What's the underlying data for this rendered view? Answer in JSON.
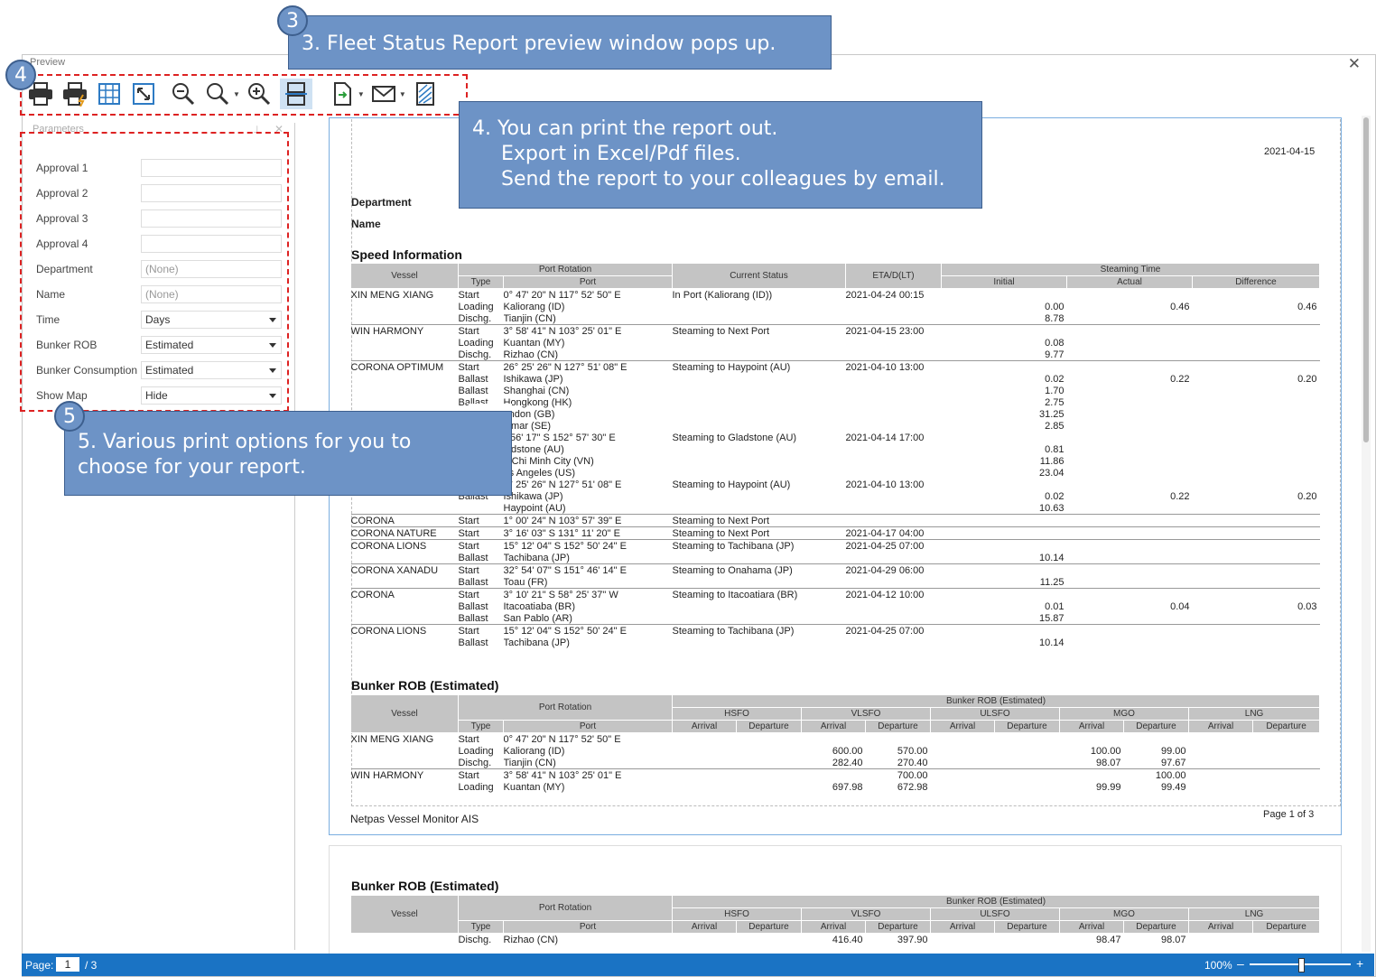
{
  "window": {
    "title": "Preview",
    "close": "✕"
  },
  "toolbar": {
    "icons": [
      "print-icon",
      "quick-print-icon",
      "page-setup-icon",
      "fit-page-icon",
      "zoom-out-icon",
      "zoom-icon",
      "zoom-in-icon",
      "multi-page-icon",
      "export-icon",
      "email-icon",
      "watermark-icon"
    ]
  },
  "params": {
    "header": "Parameters",
    "rows": [
      {
        "label": "Approval 1",
        "value": ""
      },
      {
        "label": "Approval 2",
        "value": ""
      },
      {
        "label": "Approval 3",
        "value": ""
      },
      {
        "label": "Approval 4",
        "value": ""
      },
      {
        "label": "Department",
        "value": "(None)"
      },
      {
        "label": "Name",
        "value": "(None)"
      },
      {
        "label": "Time",
        "value": "Days"
      },
      {
        "label": "Bunker ROB",
        "value": "Estimated"
      },
      {
        "label": "Bunker Consumption",
        "value": "Estimated"
      },
      {
        "label": "Show Map",
        "value": "Hide"
      }
    ]
  },
  "report": {
    "date": "2021-04-15",
    "department_label": "Department",
    "name_label": "Name",
    "speed_title": "Speed Information",
    "speed_headers": {
      "vessel": "Vessel",
      "port_rotation": "Port Rotation",
      "type": "Type",
      "port": "Port",
      "current_status": "Current Status",
      "eta": "ETA/D(LT)",
      "steaming_time": "Steaming Time",
      "initial": "Initial",
      "actual": "Actual",
      "difference": "Difference"
    },
    "speed_rows": [
      [
        "XIN MENG XIANG",
        "Start",
        "0° 47' 20\" N 117° 52' 50\" E",
        "In Port (Kaliorang (ID))",
        "2021-04-24 00:15",
        "",
        "",
        ""
      ],
      [
        "",
        "Loading",
        "Kaliorang (ID)",
        "",
        "",
        "0.00",
        "0.46",
        "0.46"
      ],
      [
        "",
        "Dischg.",
        "Tianjin (CN)",
        "",
        "",
        "8.78",
        "",
        ""
      ],
      [
        "WIN HARMONY",
        "Start",
        "3° 58' 41\" N 103° 25' 01\" E",
        "Steaming to Next Port",
        "2021-04-15 23:00",
        "",
        "",
        ""
      ],
      [
        "",
        "Loading",
        "Kuantan (MY)",
        "",
        "",
        "0.08",
        "",
        ""
      ],
      [
        "",
        "Dischg.",
        "Rizhao (CN)",
        "",
        "",
        "9.77",
        "",
        ""
      ],
      [
        "CORONA OPTIMUM",
        "Start",
        "26° 25' 26\" N 127° 51' 08\" E",
        "Steaming to Haypoint (AU)",
        "2021-04-10 13:00",
        "",
        "",
        ""
      ],
      [
        "",
        "Ballast",
        "Ishikawa (JP)",
        "",
        "",
        "0.02",
        "0.22",
        "0.20"
      ],
      [
        "",
        "Ballast",
        "Shanghai (CN)",
        "",
        "",
        "1.70",
        "",
        ""
      ],
      [
        "",
        "Ballast",
        "Hongkong (HK)",
        "",
        "",
        "2.75",
        "",
        ""
      ],
      [
        "",
        "",
        "ondon (GB)",
        "",
        "",
        "31.25",
        "",
        ""
      ],
      [
        "",
        "",
        "almar (SE)",
        "",
        "",
        "2.85",
        "",
        ""
      ],
      [
        "",
        "",
        "° 56' 17\" S 152° 57' 30\" E",
        "Steaming to Gladstone (AU)",
        "2021-04-14 17:00",
        "",
        "",
        ""
      ],
      [
        "",
        "",
        "ladstone (AU)",
        "",
        "",
        "0.81",
        "",
        ""
      ],
      [
        "",
        "",
        "o Chi Minh City (VN)",
        "",
        "",
        "11.86",
        "",
        ""
      ],
      [
        "",
        "",
        "os Angeles (US)",
        "",
        "",
        "23.04",
        "",
        ""
      ],
      [
        "",
        "",
        "6° 25' 26\" N 127° 51' 08\" E",
        "Steaming to Haypoint (AU)",
        "2021-04-10 13:00",
        "",
        "",
        ""
      ],
      [
        "",
        "Ballast",
        "Ishikawa (JP)",
        "",
        "",
        "0.02",
        "0.22",
        "0.20"
      ],
      [
        "",
        "",
        "Haypoint (AU)",
        "",
        "",
        "10.63",
        "",
        ""
      ],
      [
        "CORONA",
        "Start",
        "1° 00' 24\" N 103° 57' 39\" E",
        "Steaming to Next Port",
        "",
        "",
        "",
        ""
      ],
      [
        "CORONA NATURE",
        "Start",
        "3° 16' 03\" S 131° 11' 20\" E",
        "Steaming to Next Port",
        "2021-04-17 04:00",
        "",
        "",
        ""
      ],
      [
        "CORONA LIONS",
        "Start",
        "15° 12' 04\" S 152° 50' 24\" E",
        "Steaming to Tachibana (JP)",
        "2021-04-25 07:00",
        "",
        "",
        ""
      ],
      [
        "",
        "Ballast",
        "Tachibana (JP)",
        "",
        "",
        "10.14",
        "",
        ""
      ],
      [
        "CORONA XANADU",
        "Start",
        "32° 54' 07\" S 151° 46' 14\" E",
        "Steaming to Onahama (JP)",
        "2021-04-29 06:00",
        "",
        "",
        ""
      ],
      [
        "",
        "Ballast",
        "Toau (FR)",
        "",
        "",
        "11.25",
        "",
        ""
      ],
      [
        "CORONA",
        "Start",
        "3° 10' 21\" S 58° 25' 37\" W",
        "Steaming to Itacoatiara (BR)",
        "2021-04-12 10:00",
        "",
        "",
        ""
      ],
      [
        "",
        "Ballast",
        "Itacoatiaba (BR)",
        "",
        "",
        "0.01",
        "0.04",
        "0.03"
      ],
      [
        "",
        "Ballast",
        "San Pablo (AR)",
        "",
        "",
        "15.87",
        "",
        ""
      ],
      [
        "CORONA LIONS",
        "Start",
        "15° 12' 04\" S 152° 50' 24\" E",
        "Steaming to Tachibana (JP)",
        "2021-04-25 07:00",
        "",
        "",
        ""
      ],
      [
        "",
        "Ballast",
        "Tachibana (JP)",
        "",
        "",
        "10.14",
        "",
        ""
      ]
    ],
    "bunker_title": "Bunker ROB (Estimated)",
    "bunker_headers": {
      "vessel": "Vessel",
      "port_rotation": "Port Rotation",
      "group": "Bunker ROB (Estimated)",
      "type": "Type",
      "port": "Port",
      "fuels": [
        "HSFO",
        "VLSFO",
        "ULSFO",
        "MGO",
        "LNG"
      ],
      "arrival": "Arrival",
      "departure": "Departure"
    },
    "bunker_rows": [
      [
        "XIN MENG XIANG",
        "Start",
        "0° 47' 20\" N 117° 52' 50\" E",
        "",
        "",
        "",
        "",
        "",
        "",
        "",
        "",
        "",
        ""
      ],
      [
        "",
        "Loading",
        "Kaliorang (ID)",
        "",
        "",
        "600.00",
        "570.00",
        "",
        "",
        "100.00",
        "99.00",
        "",
        ""
      ],
      [
        "",
        "Dischg.",
        "Tianjin (CN)",
        "",
        "",
        "282.40",
        "270.40",
        "",
        "",
        "98.07",
        "97.67",
        "",
        ""
      ],
      [
        "WIN HARMONY",
        "Start",
        "3° 58' 41\" N 103° 25' 01\" E",
        "",
        "",
        "",
        "700.00",
        "",
        "",
        "",
        "100.00",
        "",
        ""
      ],
      [
        "",
        "Loading",
        "Kuantan (MY)",
        "",
        "",
        "697.98",
        "672.98",
        "",
        "",
        "99.99",
        "99.49",
        "",
        ""
      ]
    ],
    "footer_left": "Netpas Vessel Monitor AIS",
    "footer_right": "Page 1 of 3",
    "page2_rows": [
      [
        "",
        "Dischg.",
        "Rizhao (CN)",
        "",
        "",
        "416.40",
        "397.90",
        "",
        "",
        "98.47",
        "98.07",
        "",
        ""
      ]
    ]
  },
  "statusbar": {
    "page_label": "Page:",
    "page_value": "1",
    "page_total": "/ 3",
    "zoom": "100%"
  },
  "callouts": {
    "c3_badge": "3",
    "c3_text": "3. Fleet Status Report preview window pops up.",
    "c4_badge": "4",
    "c4_line1": "4. You can print the report out.",
    "c4_line2": "Export in Excel/Pdf files.",
    "c4_line3": "Send the report to your colleagues by email.",
    "c5_badge": "5",
    "c5_line1": "5. Various print options for you to",
    "c5_line2": "choose for your report."
  }
}
